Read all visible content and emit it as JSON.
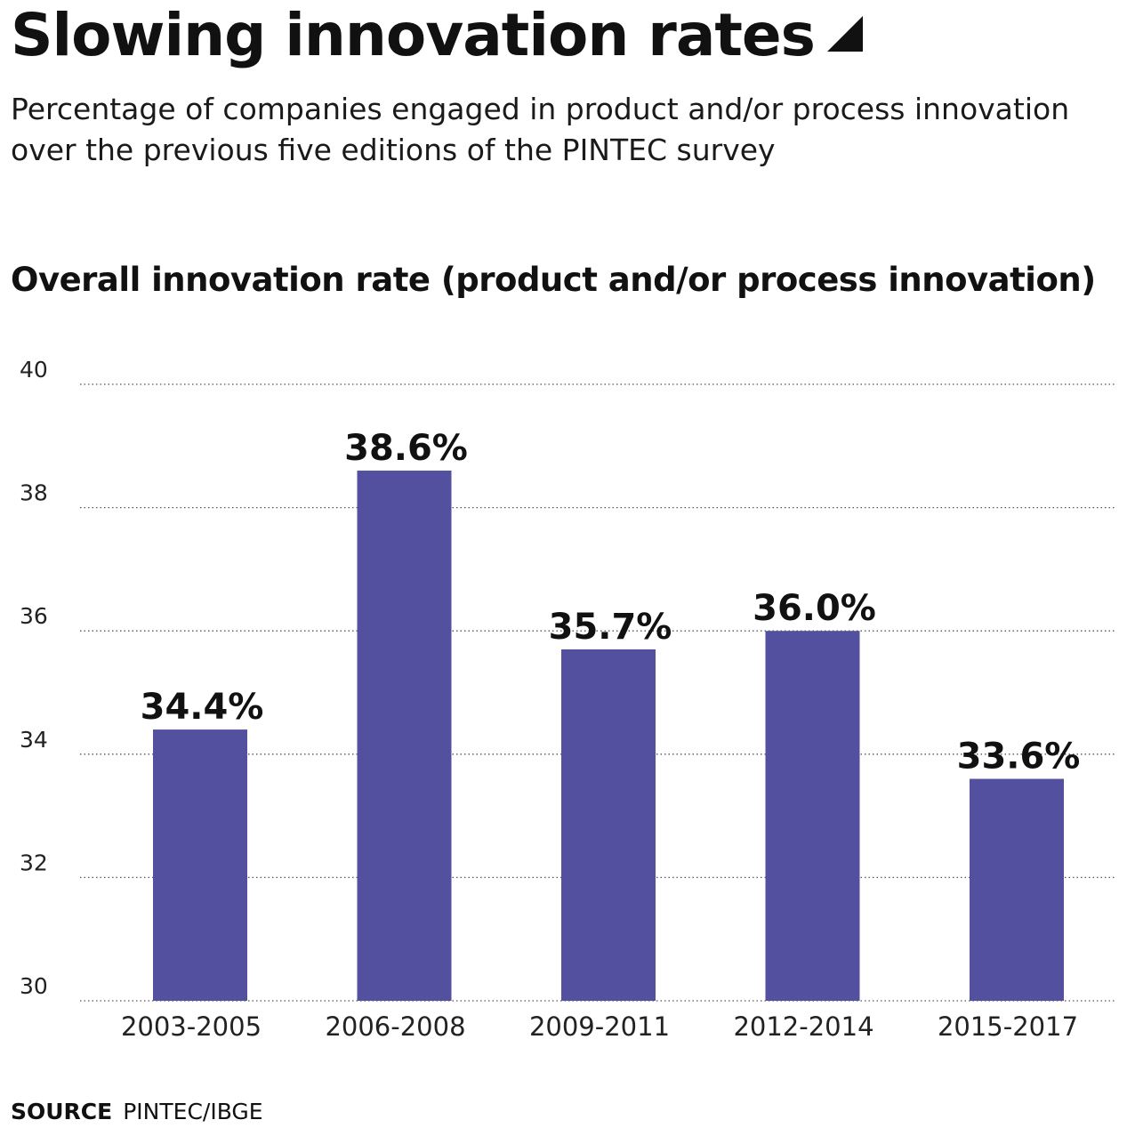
{
  "header": {
    "title": "Slowing innovation rates",
    "subtitle": "Percentage of companies engaged in product and/or process innovation over the previous five editions of the PINTEC survey"
  },
  "footer": {
    "source_label": "SOURCE",
    "source_text": "PINTEC/IBGE"
  },
  "colors": {
    "bar": "#5350a0",
    "grid": "#555555",
    "text": "#111111"
  },
  "chart_data": {
    "type": "bar",
    "title": "Overall innovation rate (product and/or process innovation)",
    "xlabel": "",
    "ylabel": "",
    "categories": [
      "2003-2005",
      "2006-2008",
      "2009-2011",
      "2012-2014",
      "2015-2017"
    ],
    "values": [
      34.4,
      38.6,
      35.7,
      36.0,
      33.6
    ],
    "data_labels": [
      "34.4%",
      "38.6%",
      "35.7%",
      "36.0%",
      "33.6%"
    ],
    "ylim": [
      30,
      40
    ],
    "yticks": [
      30,
      32,
      34,
      36,
      38,
      40
    ],
    "grid": true,
    "grid_style": "dotted",
    "legend": "none"
  }
}
